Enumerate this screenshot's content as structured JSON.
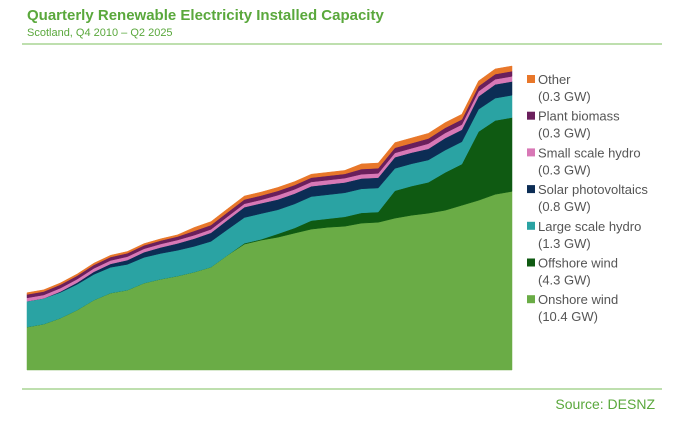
{
  "chart_data": {
    "type": "stacked-area",
    "title": "Quarterly Renewable Electricity Installed Capacity",
    "subtitle": "Scotland, Q4 2010 – Q2 2025",
    "source": "Source: DESNZ",
    "categories": [
      null,
      null,
      null,
      null,
      null,
      null,
      null,
      null,
      null,
      null,
      null,
      null,
      null,
      null,
      null,
      null,
      null,
      null,
      null,
      null,
      null,
      null,
      null,
      null,
      null,
      null,
      null,
      null,
      null,
      null
    ],
    "series": [
      {
        "name": "Onshore wind",
        "label": "(10.4 GW)",
        "color": "#6aac46",
        "values": [
          2.5,
          2.67,
          3.02,
          3.49,
          4.07,
          4.48,
          4.65,
          5.06,
          5.29,
          5.47,
          5.7,
          5.99,
          6.69,
          7.33,
          7.56,
          7.73,
          7.97,
          8.2,
          8.31,
          8.37,
          8.55,
          8.6,
          8.84,
          9.01,
          9.13,
          9.3,
          9.59,
          9.88,
          10.23,
          10.4
        ]
      },
      {
        "name": "Offshore wind",
        "label": "(4.3 GW)",
        "color": "#0f5a12",
        "values": [
          0,
          0,
          0,
          0,
          0,
          0,
          0,
          0,
          0,
          0,
          0,
          0,
          0,
          0.05,
          0.05,
          0.2,
          0.3,
          0.5,
          0.5,
          0.55,
          0.6,
          0.6,
          1.6,
          1.7,
          1.8,
          2.2,
          2.4,
          4.0,
          4.3,
          4.3
        ]
      },
      {
        "name": "Large scale hydro",
        "label": "(1.3 GW)",
        "color": "#2aa3a3",
        "values": [
          1.5,
          1.5,
          1.5,
          1.5,
          1.5,
          1.5,
          1.5,
          1.5,
          1.5,
          1.5,
          1.5,
          1.5,
          1.5,
          1.5,
          1.5,
          1.4,
          1.4,
          1.4,
          1.4,
          1.4,
          1.4,
          1.4,
          1.3,
          1.3,
          1.3,
          1.3,
          1.3,
          1.3,
          1.3,
          1.3
        ]
      },
      {
        "name": "Solar photovoltaics",
        "label": "(0.8 GW)",
        "color": "#0c2d55",
        "values": [
          0,
          0,
          0.05,
          0.1,
          0.15,
          0.2,
          0.25,
          0.3,
          0.35,
          0.4,
          0.45,
          0.5,
          0.55,
          0.6,
          0.6,
          0.6,
          0.6,
          0.6,
          0.6,
          0.6,
          0.6,
          0.6,
          0.65,
          0.65,
          0.65,
          0.7,
          0.7,
          0.75,
          0.8,
          0.8
        ]
      },
      {
        "name": "Small scale hydro",
        "label": "(0.3 GW)",
        "color": "#d878b6",
        "values": [
          0.2,
          0.2,
          0.2,
          0.2,
          0.2,
          0.2,
          0.2,
          0.2,
          0.2,
          0.2,
          0.2,
          0.2,
          0.2,
          0.2,
          0.2,
          0.25,
          0.25,
          0.25,
          0.25,
          0.25,
          0.25,
          0.25,
          0.25,
          0.25,
          0.3,
          0.3,
          0.3,
          0.3,
          0.3,
          0.3
        ]
      },
      {
        "name": "Plant biomass",
        "label": "(0.3 GW)",
        "color": "#6a1f5c",
        "values": [
          0.2,
          0.2,
          0.2,
          0.2,
          0.2,
          0.2,
          0.2,
          0.2,
          0.2,
          0.2,
          0.25,
          0.25,
          0.25,
          0.25,
          0.25,
          0.25,
          0.25,
          0.25,
          0.25,
          0.25,
          0.3,
          0.3,
          0.3,
          0.3,
          0.3,
          0.3,
          0.3,
          0.3,
          0.3,
          0.3
        ]
      },
      {
        "name": "Other",
        "label": "(0.3 GW)",
        "color": "#e8772a",
        "values": [
          0.1,
          0.1,
          0.1,
          0.1,
          0.1,
          0.1,
          0.1,
          0.1,
          0.1,
          0.1,
          0.2,
          0.2,
          0.2,
          0.2,
          0.2,
          0.2,
          0.2,
          0.2,
          0.2,
          0.2,
          0.3,
          0.3,
          0.3,
          0.3,
          0.3,
          0.3,
          0.3,
          0.3,
          0.3,
          0.3
        ]
      }
    ]
  }
}
